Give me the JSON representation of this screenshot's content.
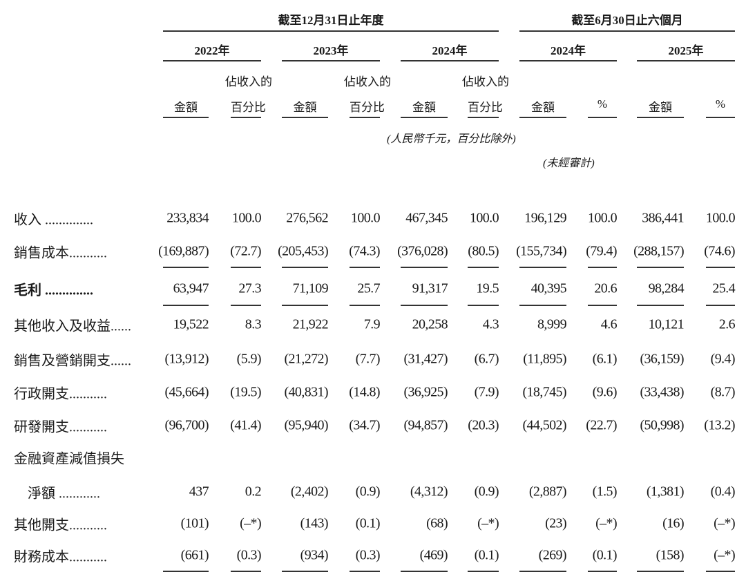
{
  "header": {
    "group_annual": "截至12月31日止年度",
    "group_interim": "截至6月30日止六個月",
    "years": [
      "2022年",
      "2023年",
      "2024年",
      "2024年",
      "2025年"
    ],
    "col_amount": "金額",
    "col_pct_line1": "佔收入的",
    "col_pct_line2": "百分比",
    "col_pct_symbol": "%",
    "unit_note": "(人民幣千元，百分比除外)",
    "unaudited_note": "(未經審計)"
  },
  "rows": [
    {
      "label": "收入 ..............",
      "bold": false,
      "values": [
        "233,834",
        "100.0",
        "276,562",
        "100.0",
        "467,345",
        "100.0",
        "196,129",
        "100.0",
        "386,441",
        "100.0"
      ]
    },
    {
      "label": "銷售成本...........",
      "bold": false,
      "values": [
        "(169,887)",
        "(72.7)",
        "(205,453)",
        "(74.3)",
        "(376,028)",
        "(80.5)",
        "(155,734)",
        "(79.4)",
        "(288,157)",
        "(74.6)"
      ]
    },
    {
      "label": "毛利 ..............",
      "bold": true,
      "values": [
        "63,947",
        "27.3",
        "71,109",
        "25.7",
        "91,317",
        "19.5",
        "40,395",
        "20.6",
        "98,284",
        "25.4"
      ]
    },
    {
      "label": "其他收入及收益......",
      "bold": false,
      "values": [
        "19,522",
        "8.3",
        "21,922",
        "7.9",
        "20,258",
        "4.3",
        "8,999",
        "4.6",
        "10,121",
        "2.6"
      ]
    },
    {
      "label": "銷售及營銷開支......",
      "bold": false,
      "values": [
        "(13,912)",
        "(5.9)",
        "(21,272)",
        "(7.7)",
        "(31,427)",
        "(6.7)",
        "(11,895)",
        "(6.1)",
        "(36,159)",
        "(9.4)"
      ]
    },
    {
      "label": "行政開支...........",
      "bold": false,
      "values": [
        "(45,664)",
        "(19.5)",
        "(40,831)",
        "(14.8)",
        "(36,925)",
        "(7.9)",
        "(18,745)",
        "(9.6)",
        "(33,438)",
        "(8.7)"
      ]
    },
    {
      "label": "研發開支...........",
      "bold": false,
      "values": [
        "(96,700)",
        "(41.4)",
        "(95,940)",
        "(34.7)",
        "(94,857)",
        "(20.3)",
        "(44,502)",
        "(22.7)",
        "(50,998)",
        "(13.2)"
      ]
    },
    {
      "label": "金融資產減值損失",
      "bold": false,
      "values": []
    },
    {
      "label": "　淨額 ............",
      "bold": false,
      "values": [
        "437",
        "0.2",
        "(2,402)",
        "(0.9)",
        "(4,312)",
        "(0.9)",
        "(2,887)",
        "(1.5)",
        "(1,381)",
        "(0.4)"
      ]
    },
    {
      "label": "其他開支...........",
      "bold": false,
      "values": [
        "(101)",
        "(–*)",
        "(143)",
        "(0.1)",
        "(68)",
        "(–*)",
        "(23)",
        "(–*)",
        "(16)",
        "(–*)"
      ]
    },
    {
      "label": "財務成本...........",
      "bold": false,
      "values": [
        "(661)",
        "(0.3)",
        "(934)",
        "(0.3)",
        "(469)",
        "(0.1)",
        "(269)",
        "(0.1)",
        "(158)",
        "(–*)"
      ]
    }
  ]
}
